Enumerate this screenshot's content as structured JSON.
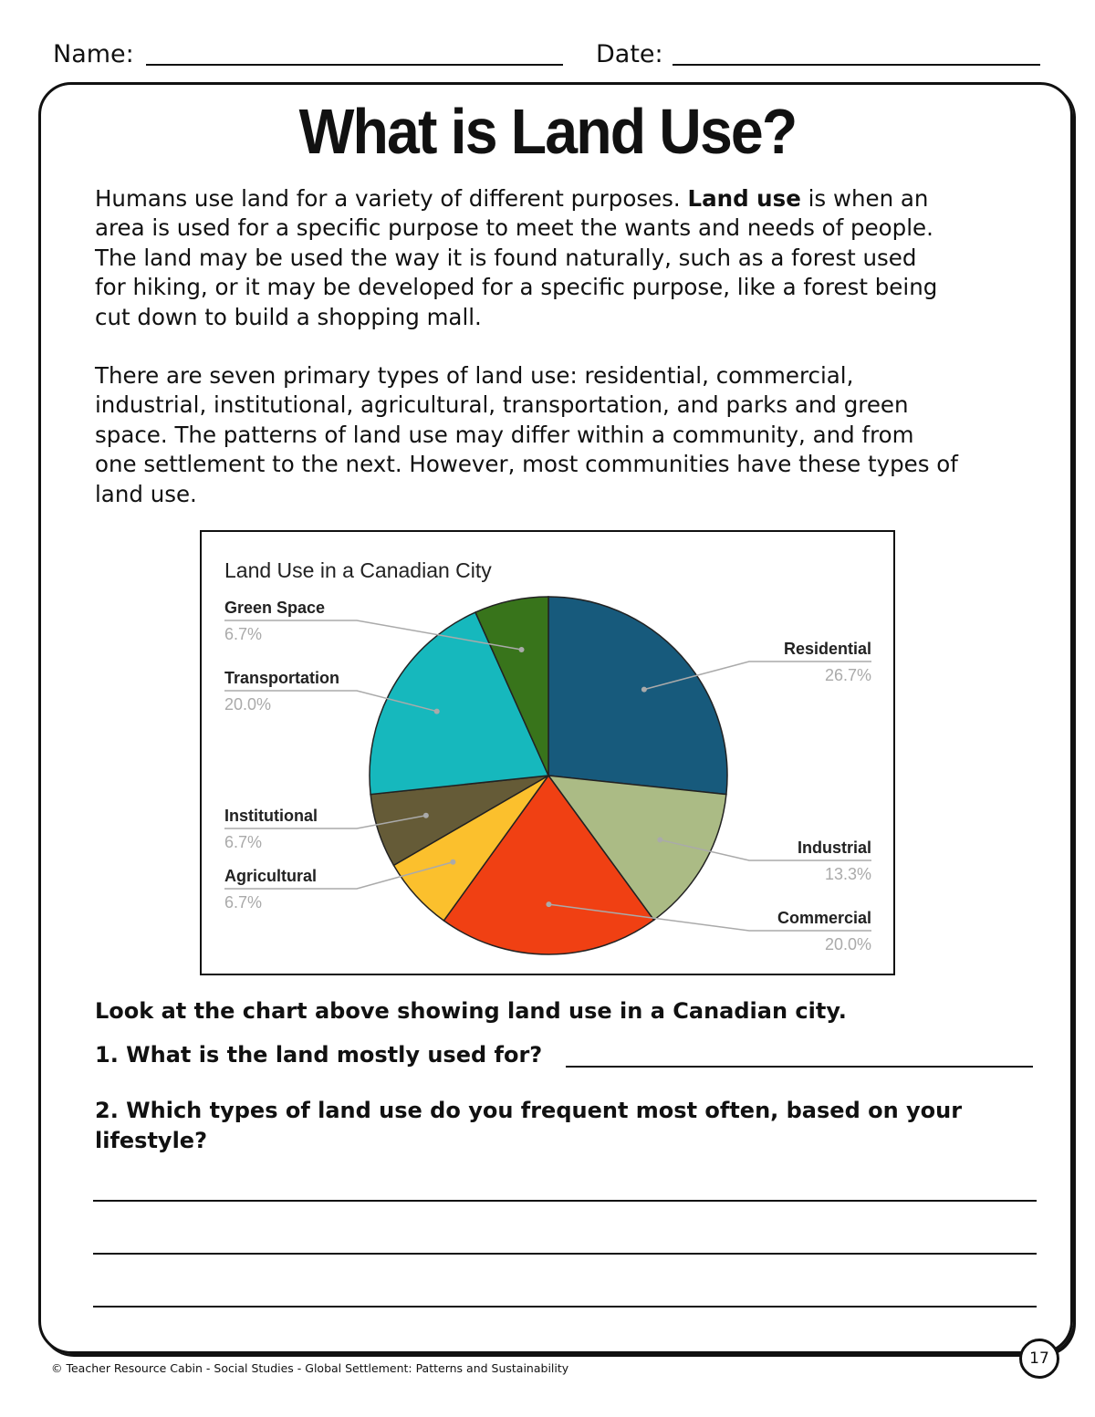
{
  "header": {
    "name_label": "Name:",
    "date_label": "Date:"
  },
  "title": "What is Land Use?",
  "paragraph1": {
    "line1_pre": "Humans use land for a variety of different purposes. ",
    "line1_bold": "Land use",
    "line1_post": " is when an",
    "lines": [
      "area is used for a specific purpose to meet the wants and needs of people.",
      "The land may be used the way it is found naturally, such as a forest used",
      "for hiking, or it may be developed for a specific purpose, like a forest being",
      "cut down to build a shopping mall."
    ]
  },
  "paragraph2": {
    "lines": [
      "There are seven primary types of land use: residential, commercial,",
      "industrial, institutional, agricultural, transportation, and parks and green",
      "space. The patterns of land use may differ within a community, and from",
      "one settlement to the next. However, most communities have these types of",
      "land use."
    ]
  },
  "chart_data": {
    "type": "pie",
    "title": "Land Use in a Canadian City",
    "slices": [
      {
        "label": "Residential",
        "value": 26.7,
        "display": "26.7%",
        "color": "#175a7c"
      },
      {
        "label": "Industrial",
        "value": 13.3,
        "display": "13.3%",
        "color": "#abbb85"
      },
      {
        "label": "Commercial",
        "value": 20.0,
        "display": "20.0%",
        "color": "#f04013"
      },
      {
        "label": "Agricultural",
        "value": 6.7,
        "display": "6.7%",
        "color": "#fbc02d"
      },
      {
        "label": "Institutional",
        "value": 6.7,
        "display": "6.7%",
        "color": "#655b37"
      },
      {
        "label": "Transportation",
        "value": 20.0,
        "display": "20.0%",
        "color": "#16b8bd"
      },
      {
        "label": "Green Space",
        "value": 6.7,
        "display": "6.7%",
        "color": "#38741b"
      }
    ],
    "start": "top",
    "direction": "clockwise",
    "legend": "callout labels"
  },
  "questions": {
    "intro": "Look at the chart above showing land use in a Canadian city.",
    "q1": "1. What is the land mostly used for?",
    "q2_line1": "2. Which types of land use do you frequent most often, based on your",
    "q2_line2": "lifestyle?"
  },
  "footer": "© Teacher Resource Cabin - Social Studies - Global Settlement: Patterns and Sustainability",
  "page_number": "17"
}
